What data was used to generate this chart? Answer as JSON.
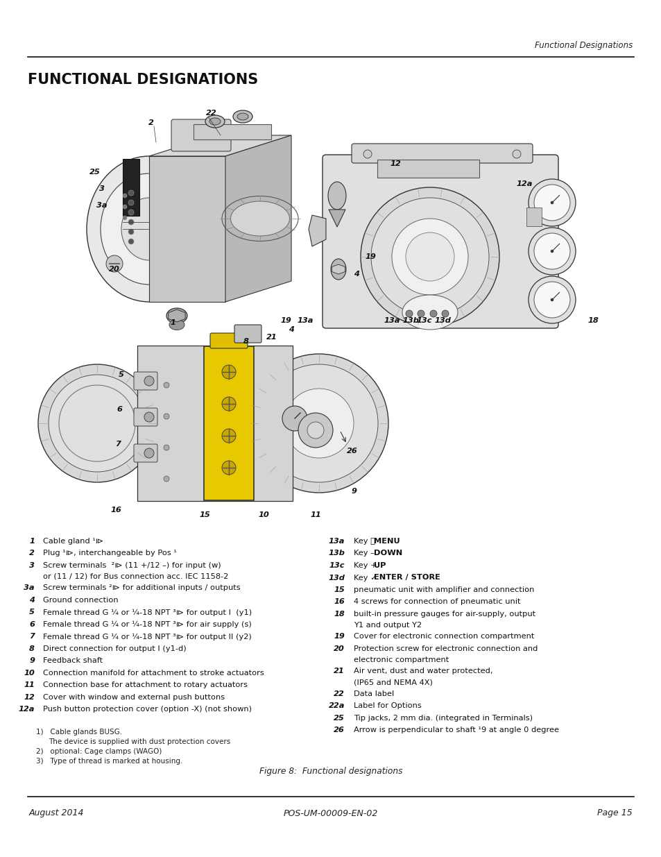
{
  "header_text": "Functional Designations",
  "title": "FUNCTIONAL DESIGNATIONS",
  "footer_left": "August 2014",
  "footer_center": "POS-UM-00009-EN-02",
  "footer_right": "Page 15",
  "figure_caption": "Figure 8:  Functional designations",
  "left_column_items": [
    {
      "num": "1",
      "text": "Cable gland ¹⧐",
      "bold": false
    },
    {
      "num": "2",
      "text": "Plug ¹⧐, interchangeable by Pos ¹",
      "bold": false
    },
    {
      "num": "3",
      "text": "Screw terminals  ²⧐ (11 +/12 –) for input (w)",
      "text2": "or (11 / 12) for Bus connection acc. IEC 1158-2",
      "bold": false
    },
    {
      "num": "3a",
      "text": "Screw terminals ²⧐ for additional inputs / outputs",
      "bold": false
    },
    {
      "num": "4",
      "text": "Ground connection",
      "bold": false
    },
    {
      "num": "5",
      "text": "Female thread G ¼ or ¼-18 NPT ³⧐ for output I  (y1)",
      "bold": false
    },
    {
      "num": "6",
      "text": "Female thread G ¼ or ¼-18 NPT ³⧐ for air supply (s)",
      "bold": false
    },
    {
      "num": "7",
      "text": "Female thread G ¼ or ¼-18 NPT ³⧐ for output II (y2)",
      "bold": false
    },
    {
      "num": "8",
      "text": "Direct connection for output I (y1-d)",
      "bold": false
    },
    {
      "num": "9",
      "text": "Feedback shaft",
      "bold": false
    },
    {
      "num": "10",
      "text": "Connection manifold for attachment to stroke actuators",
      "bold": false
    },
    {
      "num": "11",
      "text": "Connection base for attachment to rotary actuators",
      "bold": false
    },
    {
      "num": "12",
      "text": "Cover with window and external push buttons",
      "bold": false
    },
    {
      "num": "12a",
      "text": "Push button protection cover (option -X) (not shown)",
      "bold": false
    }
  ],
  "right_column_items": [
    {
      "num": "13a",
      "prefix": "Key ⓘ",
      "bold_text": " MENU"
    },
    {
      "num": "13b",
      "prefix": "Key –",
      "bold_text": "  DOWN"
    },
    {
      "num": "13c",
      "prefix": "Key +",
      "bold_text": "  UP"
    },
    {
      "num": "13d",
      "prefix": "Key ✓",
      "bold_text": " ENTER / STORE"
    },
    {
      "num": "15",
      "text": "pneumatic unit with amplifier and connection"
    },
    {
      "num": "16",
      "text": "4 screws for connection of pneumatic unit"
    },
    {
      "num": "18",
      "text": "built-in pressure gauges for air-supply, output",
      "text2": "Y1 and output Y2"
    },
    {
      "num": "19",
      "text": "Cover for electronic connection compartment"
    },
    {
      "num": "20",
      "text": "Protection screw for electronic connection and",
      "text2": "electronic compartment"
    },
    {
      "num": "21",
      "text": "Air vent, dust and water protected,",
      "text2": "(IP65 and NEMA 4X)"
    },
    {
      "num": "22",
      "text": "Data label"
    },
    {
      "num": "22a",
      "text": "Label for Options"
    },
    {
      "num": "25",
      "text": "Tip jacks, 2 mm dia. (integrated in Terminals)"
    },
    {
      "num": "26",
      "text": "Arrow is perpendicular to shaft ¹9 at angle 0 degree"
    }
  ],
  "footnotes": [
    {
      "indent": 0,
      "text": "1)   Cable glands BUSG."
    },
    {
      "indent": 1,
      "text": "The device is supplied with dust protection covers"
    },
    {
      "indent": 0,
      "text": "2)   optional: Cage clamps (WAGO)"
    },
    {
      "indent": 0,
      "text": "3)   Type of thread is marked at housing."
    }
  ],
  "bg": "#ffffff"
}
